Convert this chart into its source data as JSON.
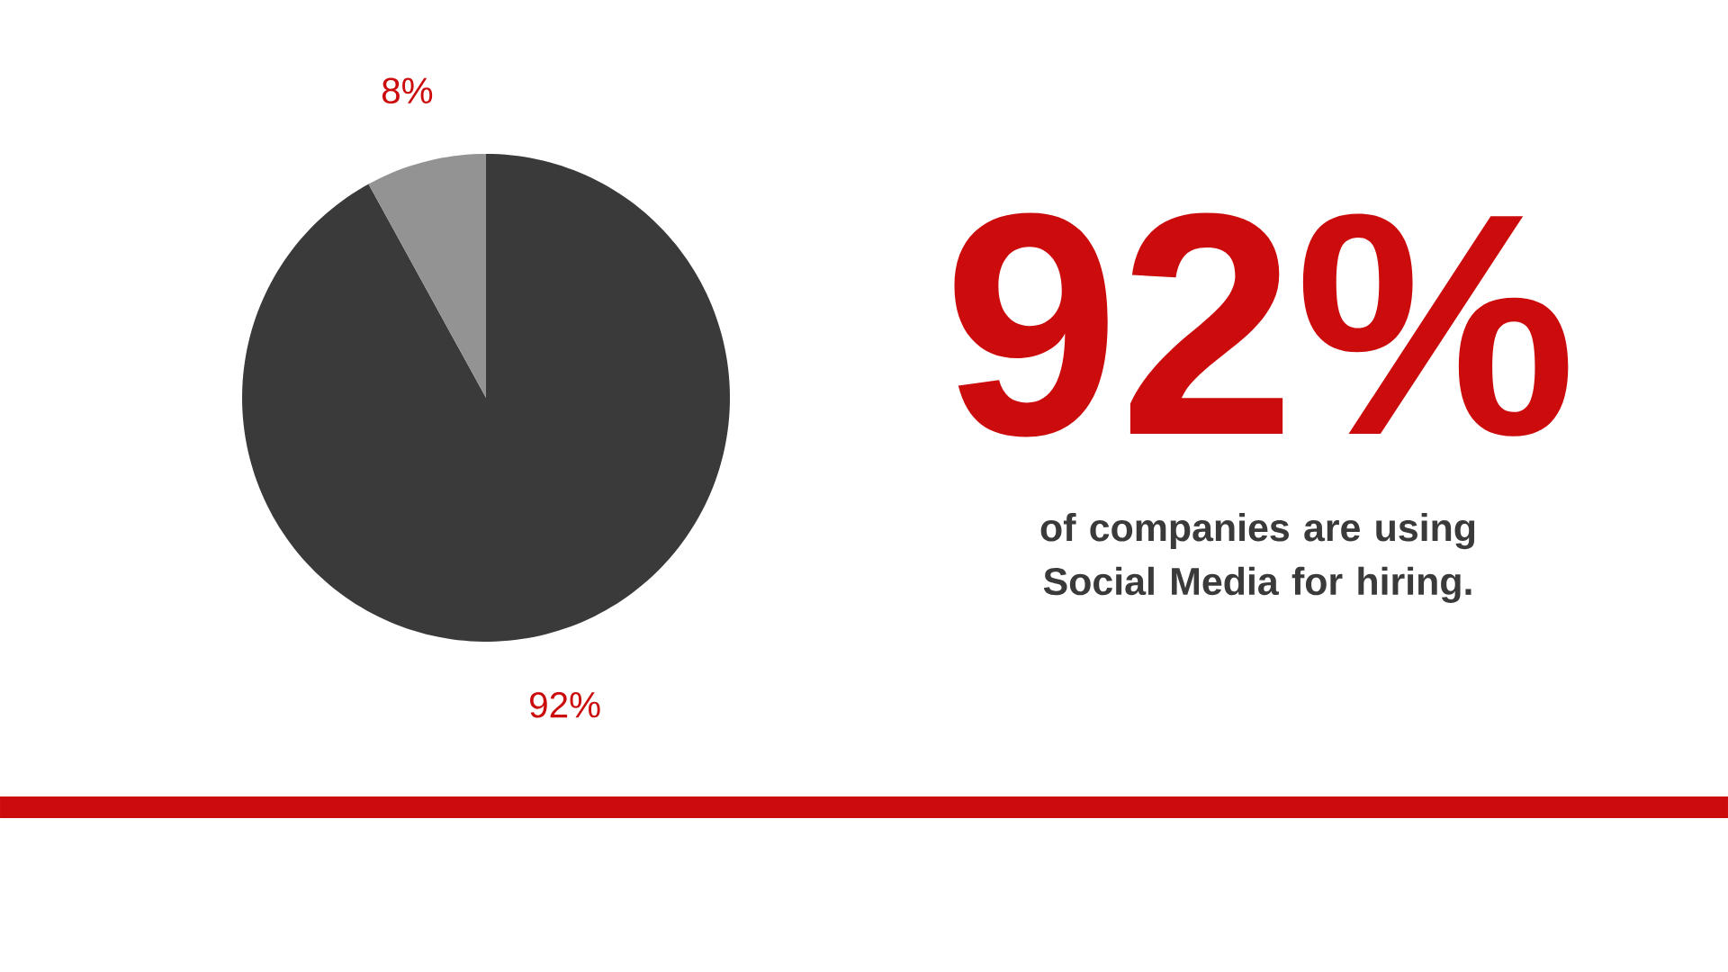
{
  "chart_data": {
    "type": "pie",
    "categories": [
      null,
      null
    ],
    "values": [
      92,
      8
    ],
    "colors": [
      "#3a3a3a",
      "#939393"
    ],
    "value_labels": [
      "92%",
      "8%"
    ],
    "annotations": [
      "92%",
      "of companies are using Social Media for hiring."
    ]
  }
}
